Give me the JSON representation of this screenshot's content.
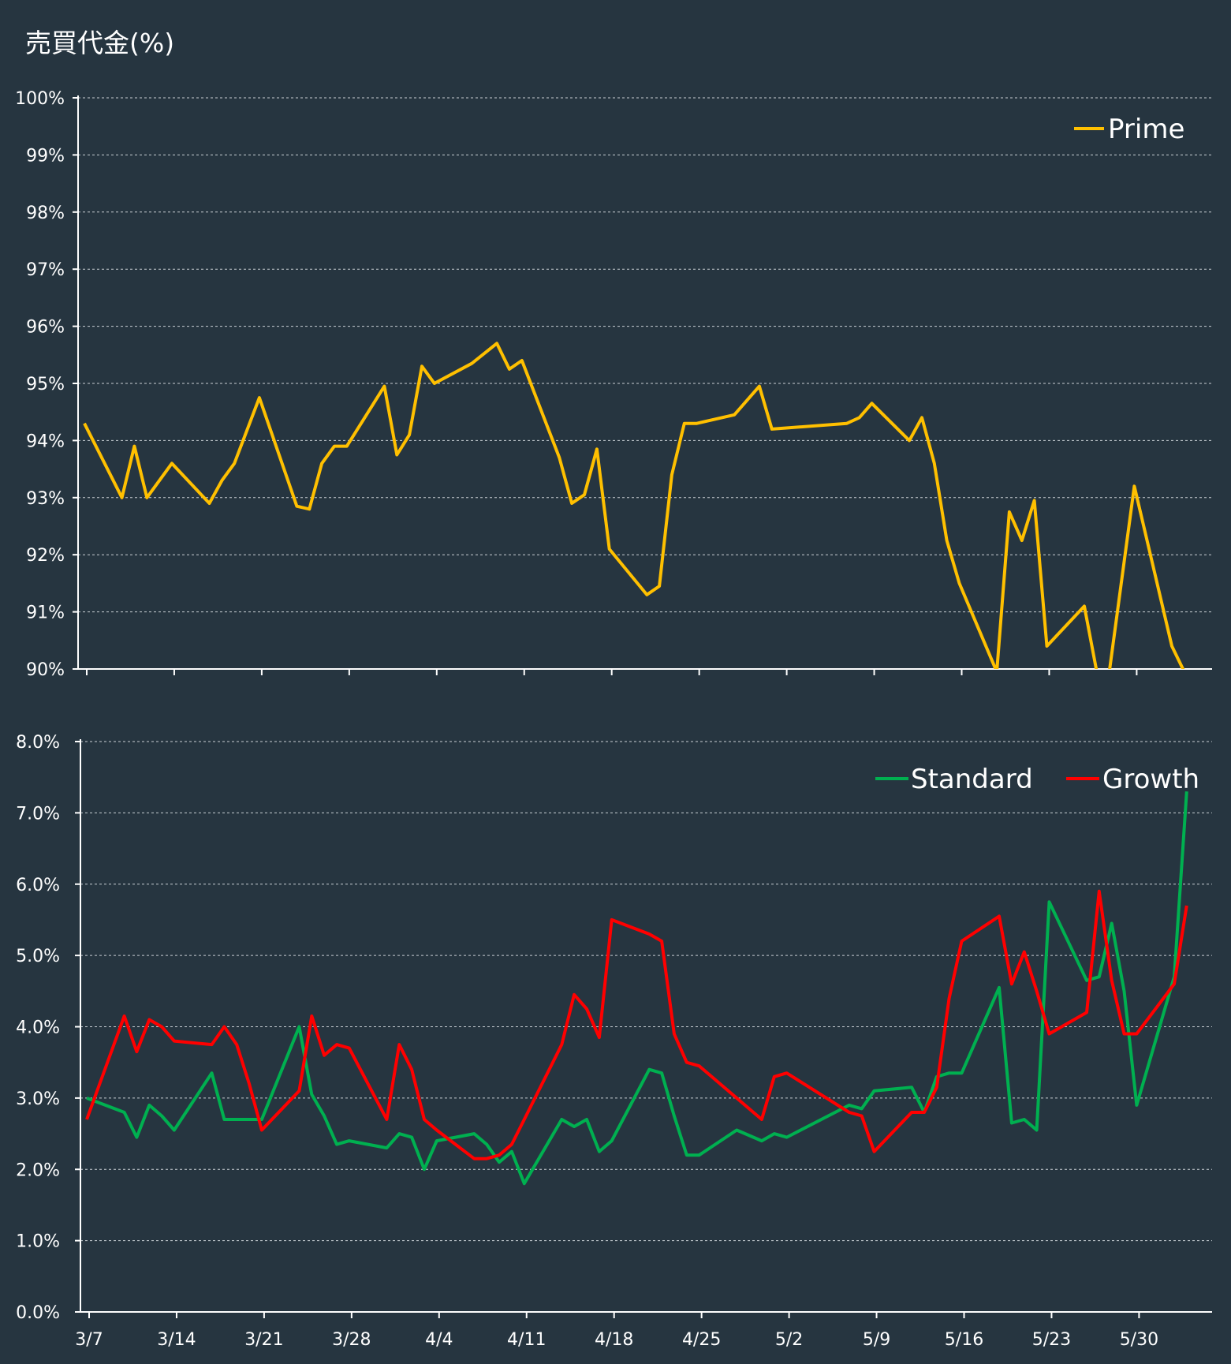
{
  "page": {
    "title": "売買代金(%)"
  },
  "colors": {
    "background": "#263540",
    "axis": "#ffffff",
    "grid": "#c9cfd4",
    "prime": "#ffc000",
    "standard": "#00b050",
    "growth": "#ff0000"
  },
  "chart_data": [
    {
      "type": "line",
      "ylim": [
        90,
        100
      ],
      "yticks": [
        90,
        91,
        92,
        93,
        94,
        95,
        96,
        97,
        98,
        99,
        100
      ],
      "ytick_labels": [
        "90%",
        "91%",
        "92%",
        "93%",
        "94%",
        "95%",
        "96%",
        "97%",
        "98%",
        "99%",
        "100%"
      ],
      "x_start": "3/7",
      "x_end": "6/3",
      "xtick_labels": [
        "3/7",
        "3/14",
        "3/21",
        "3/28",
        "4/4",
        "4/11",
        "4/18",
        "4/25",
        "5/2",
        "5/9",
        "5/16",
        "5/23",
        "5/30"
      ],
      "grid": true,
      "legend_position": "top-right",
      "x": [
        "3/7",
        "3/10",
        "3/11",
        "3/12",
        "3/14",
        "3/17",
        "3/18",
        "3/19",
        "3/21",
        "3/24",
        "3/25",
        "3/26",
        "3/27",
        "3/28",
        "3/31",
        "4/1",
        "4/2",
        "4/3",
        "4/4",
        "4/7",
        "4/9",
        "4/10",
        "4/11",
        "4/14",
        "4/15",
        "4/16",
        "4/17",
        "4/18",
        "4/21",
        "4/22",
        "4/23",
        "4/24",
        "4/25",
        "4/28",
        "4/30",
        "5/1",
        "5/7",
        "5/8",
        "5/9",
        "5/12",
        "5/13",
        "5/14",
        "5/15",
        "5/16",
        "5/19",
        "5/20",
        "5/21",
        "5/22",
        "5/23",
        "5/26",
        "5/27",
        "5/28",
        "5/30",
        "6/2",
        "6/3"
      ],
      "series": [
        {
          "name": "Prime",
          "color": "#ffc000",
          "values": [
            94.3,
            93.0,
            93.9,
            93.0,
            93.6,
            92.9,
            93.3,
            93.6,
            94.75,
            92.85,
            92.8,
            93.6,
            93.9,
            93.9,
            94.95,
            93.75,
            94.1,
            95.3,
            95.0,
            95.35,
            95.7,
            95.25,
            95.4,
            93.7,
            92.9,
            93.05,
            93.85,
            92.1,
            91.3,
            91.45,
            93.4,
            94.3,
            94.3,
            94.45,
            94.95,
            94.2,
            94.3,
            94.4,
            94.65,
            94.0,
            94.4,
            93.6,
            92.25,
            91.5,
            89.95,
            92.75,
            92.25,
            92.95,
            90.4,
            91.1,
            89.95,
            89.95,
            93.2,
            90.4,
            89.95
          ]
        }
      ]
    },
    {
      "type": "line",
      "ylim": [
        0,
        8
      ],
      "yticks": [
        0,
        1,
        2,
        3,
        4,
        5,
        6,
        7,
        8
      ],
      "ytick_labels": [
        "0.0%",
        "1.0%",
        "2.0%",
        "3.0%",
        "4.0%",
        "5.0%",
        "6.0%",
        "7.0%",
        "8.0%"
      ],
      "x_start": "3/7",
      "x_end": "6/3",
      "xtick_labels": [
        "3/7",
        "3/14",
        "3/21",
        "3/28",
        "4/4",
        "4/11",
        "4/18",
        "4/25",
        "5/2",
        "5/9",
        "5/16",
        "5/23",
        "5/30"
      ],
      "grid": true,
      "legend_position": "top-right",
      "x": [
        "3/7",
        "3/10",
        "3/11",
        "3/12",
        "3/13",
        "3/14",
        "3/17",
        "3/18",
        "3/19",
        "3/20",
        "3/21",
        "3/24",
        "3/25",
        "3/26",
        "3/27",
        "3/28",
        "3/31",
        "4/1",
        "4/2",
        "4/3",
        "4/4",
        "4/7",
        "4/8",
        "4/9",
        "4/10",
        "4/11",
        "4/14",
        "4/15",
        "4/16",
        "4/17",
        "4/18",
        "4/21",
        "4/22",
        "4/23",
        "4/24",
        "4/25",
        "4/28",
        "4/30",
        "5/1",
        "5/2",
        "5/7",
        "5/8",
        "5/9",
        "5/12",
        "5/13",
        "5/14",
        "5/15",
        "5/16",
        "5/19",
        "5/20",
        "5/21",
        "5/22",
        "5/23",
        "5/26",
        "5/27",
        "5/28",
        "5/29",
        "5/30",
        "6/2",
        "6/3"
      ],
      "series": [
        {
          "name": "Standard",
          "color": "#00b050",
          "values": [
            3.0,
            2.8,
            2.45,
            2.9,
            2.75,
            2.55,
            3.35,
            2.7,
            2.7,
            2.7,
            2.7,
            4.0,
            3.05,
            2.75,
            2.35,
            2.4,
            2.3,
            2.5,
            2.45,
            2.0,
            2.4,
            2.5,
            2.35,
            2.1,
            2.25,
            1.8,
            2.7,
            2.6,
            2.7,
            2.25,
            2.4,
            3.4,
            3.35,
            2.75,
            2.2,
            2.2,
            2.55,
            2.4,
            2.5,
            2.45,
            2.9,
            2.85,
            3.1,
            3.15,
            2.8,
            3.3,
            3.35,
            3.35,
            4.55,
            2.65,
            2.7,
            2.55,
            5.75,
            4.65,
            4.7,
            5.45,
            4.5,
            2.9,
            4.7,
            7.3
          ]
        },
        {
          "name": "Growth",
          "color": "#ff0000",
          "values": [
            2.7,
            4.15,
            3.65,
            4.1,
            4.0,
            3.8,
            3.75,
            4.0,
            3.75,
            3.2,
            2.55,
            3.1,
            4.15,
            3.6,
            3.75,
            3.7,
            2.7,
            3.75,
            3.4,
            2.7,
            2.55,
            2.15,
            2.15,
            2.2,
            2.35,
            2.7,
            3.75,
            4.45,
            4.25,
            3.85,
            5.5,
            5.3,
            5.2,
            3.9,
            3.5,
            3.45,
            3.0,
            2.7,
            3.3,
            3.35,
            2.8,
            2.75,
            2.25,
            2.8,
            2.8,
            3.15,
            4.4,
            5.2,
            5.55,
            4.6,
            5.05,
            4.5,
            3.9,
            4.2,
            5.9,
            4.65,
            3.9,
            3.9,
            4.6,
            5.7
          ]
        }
      ]
    }
  ]
}
